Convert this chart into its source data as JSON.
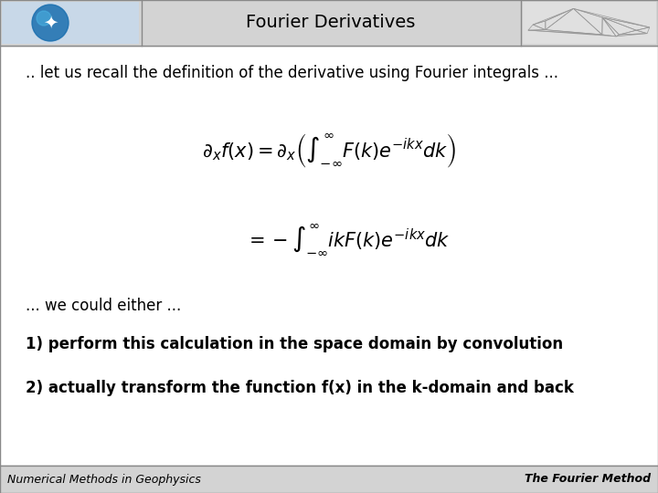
{
  "title": "Fourier Derivatives",
  "background_color": "#ffffff",
  "header_bg": "#d3d3d3",
  "border_color": "#888888",
  "text_color": "#000000",
  "intro_text": ".. let us recall the definition of the derivative using Fourier integrals ...",
  "middle_text": "... we could either ...",
  "item1": "1) perform this calculation in the space domain by convolution",
  "item2": "2) actually transform the function f(x) in the k-domain and back",
  "footer_left": "Numerical Methods in Geophysics",
  "footer_right": "The Fourier Method",
  "eq1": "$\\partial_x f(x) = \\partial_x \\left( \\int_{-\\infty}^{\\infty} F(k)e^{-ikx}dk \\right)$",
  "eq2": "$= -\\int_{-\\infty}^{\\infty} ik F(k)e^{-ikx}dk$",
  "title_fontsize": 14,
  "body_fontsize": 12,
  "footer_fontsize": 9,
  "eq_fontsize": 15
}
